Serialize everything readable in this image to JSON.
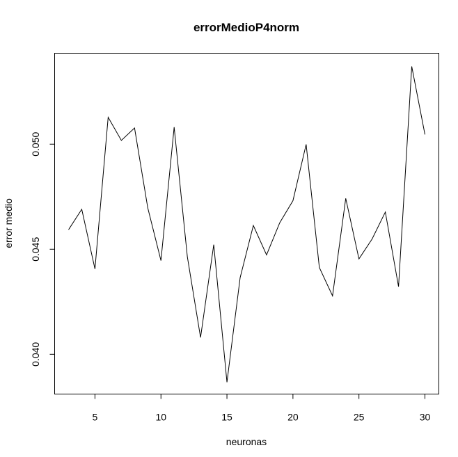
{
  "chart_data": {
    "type": "line",
    "title": "errorMedioP4norm",
    "xlabel": "neuronas",
    "ylabel": "error medio",
    "x": [
      3,
      4,
      5,
      6,
      7,
      8,
      9,
      10,
      11,
      12,
      13,
      14,
      15,
      16,
      17,
      18,
      19,
      20,
      21,
      22,
      23,
      24,
      25,
      26,
      27,
      28,
      29,
      30
    ],
    "series": [
      {
        "values": [
          0.04593,
          0.0469,
          0.04406,
          0.05128,
          0.05018,
          0.05077,
          0.04697,
          0.04446,
          0.05081,
          0.04464,
          0.0408,
          0.04522,
          0.03867,
          0.04365,
          0.04613,
          0.04473,
          0.04626,
          0.04731,
          0.04999,
          0.04413,
          0.04278,
          0.04742,
          0.04454,
          0.04549,
          0.04677,
          0.04322,
          0.0537,
          0.05046
        ],
        "color": "#000000"
      }
    ],
    "xlim": [
      3,
      30
    ],
    "ylim": [
      0.03867,
      0.0537
    ],
    "xticks": [
      5,
      10,
      15,
      20,
      25,
      30
    ],
    "xtick_labels": [
      "5",
      "10",
      "15",
      "20",
      "25",
      "30"
    ],
    "yticks": [
      0.04,
      0.045,
      0.05
    ],
    "ytick_labels": [
      "0.040",
      "0.045",
      "0.050"
    ],
    "grid": false,
    "legend": "none"
  }
}
